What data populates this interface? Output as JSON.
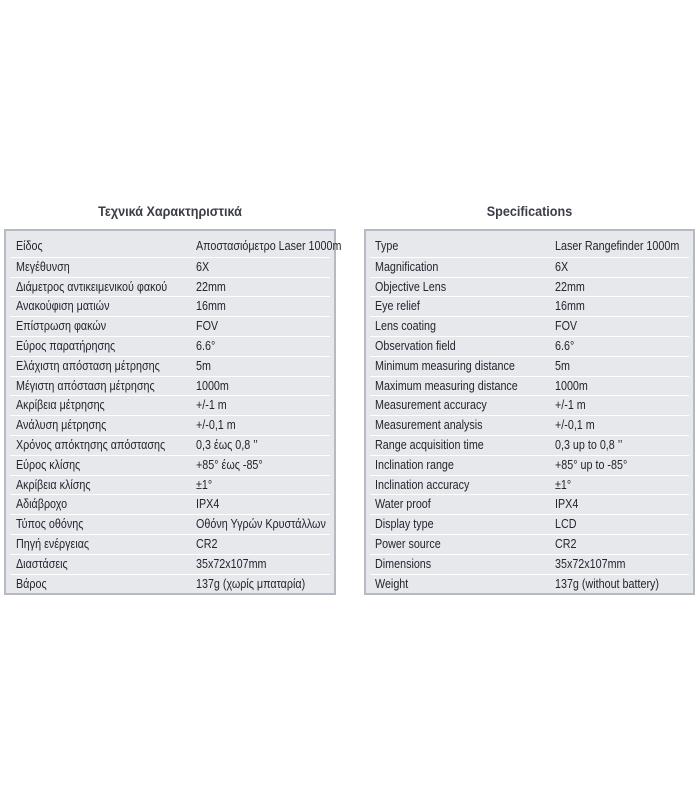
{
  "greek": {
    "title": "Τεχνικά Χαρακτηριστικά",
    "rows": [
      {
        "label": "Είδος",
        "value": "Αποστασιόμετρο Laser 1000m"
      },
      {
        "label": "Μεγέθυνση",
        "value": "6X"
      },
      {
        "label": "Διάμετρος αντικειμενικού φακού",
        "value": "22mm"
      },
      {
        "label": "Ανακούφιση ματιών",
        "value": "16mm"
      },
      {
        "label": "Επίστρωση φακών",
        "value": "FOV"
      },
      {
        "label": "Εύρος παρατήρησης",
        "value": "6.6°"
      },
      {
        "label": "Ελάχιστη απόσταση μέτρησης",
        "value": "5m"
      },
      {
        "label": "Μέγιστη απόσταση μέτρησης",
        "value": "1000m"
      },
      {
        "label": "Ακρίβεια μέτρησης",
        "value": "+/-1 m"
      },
      {
        "label": "Ανάλυση μέτρησης",
        "value": "+/-0,1 m"
      },
      {
        "label": "Χρόνος απόκτησης απόστασης",
        "value": "0,3 έως 0,8 ’’"
      },
      {
        "label": "Εύρος κλίσης",
        "value": "+85°  έως  -85°"
      },
      {
        "label": "Ακρίβεια κλίσης",
        "value": "±1°"
      },
      {
        "label": "Αδιάβροχο",
        "value": "IPX4"
      },
      {
        "label": "Τύπος οθόνης",
        "value": "Οθόνη Υγρών Κρυστάλλων"
      },
      {
        "label": "Πηγή ενέργειας",
        "value": "CR2"
      },
      {
        "label": "Διαστάσεις",
        "value": "35x72x107mm"
      },
      {
        "label": "Βάρος",
        "value": "137g (χωρίς μπαταρία)"
      }
    ]
  },
  "english": {
    "title": "Specifications",
    "rows": [
      {
        "label": "Type",
        "value": "Laser Rangefinder 1000m"
      },
      {
        "label": "Magnification",
        "value": "6X"
      },
      {
        "label": "Objective Lens",
        "value": "22mm"
      },
      {
        "label": "Eye relief",
        "value": "16mm"
      },
      {
        "label": "Lens coating",
        "value": "FOV"
      },
      {
        "label": "Observation field",
        "value": "6.6°"
      },
      {
        "label": "Minimum measuring distance",
        "value": "5m"
      },
      {
        "label": "Maximum measuring distance",
        "value": "1000m"
      },
      {
        "label": "Measurement accuracy",
        "value": "+/-1 m"
      },
      {
        "label": "Measurement analysis",
        "value": "+/-0,1 m"
      },
      {
        "label": "Range acquisition time",
        "value": "0,3 up to 0,8 ’’"
      },
      {
        "label": "Inclination range",
        "value": "+85° up to  -85°"
      },
      {
        "label": "Inclination accuracy",
        "value": "±1°"
      },
      {
        "label": "Water proof",
        "value": "IPX4"
      },
      {
        "label": "Display type",
        "value": "LCD"
      },
      {
        "label": "Power source",
        "value": "CR2"
      },
      {
        "label": "Dimensions",
        "value": "35x72x107mm"
      },
      {
        "label": "Weight",
        "value": "137g (without battery)"
      }
    ]
  }
}
